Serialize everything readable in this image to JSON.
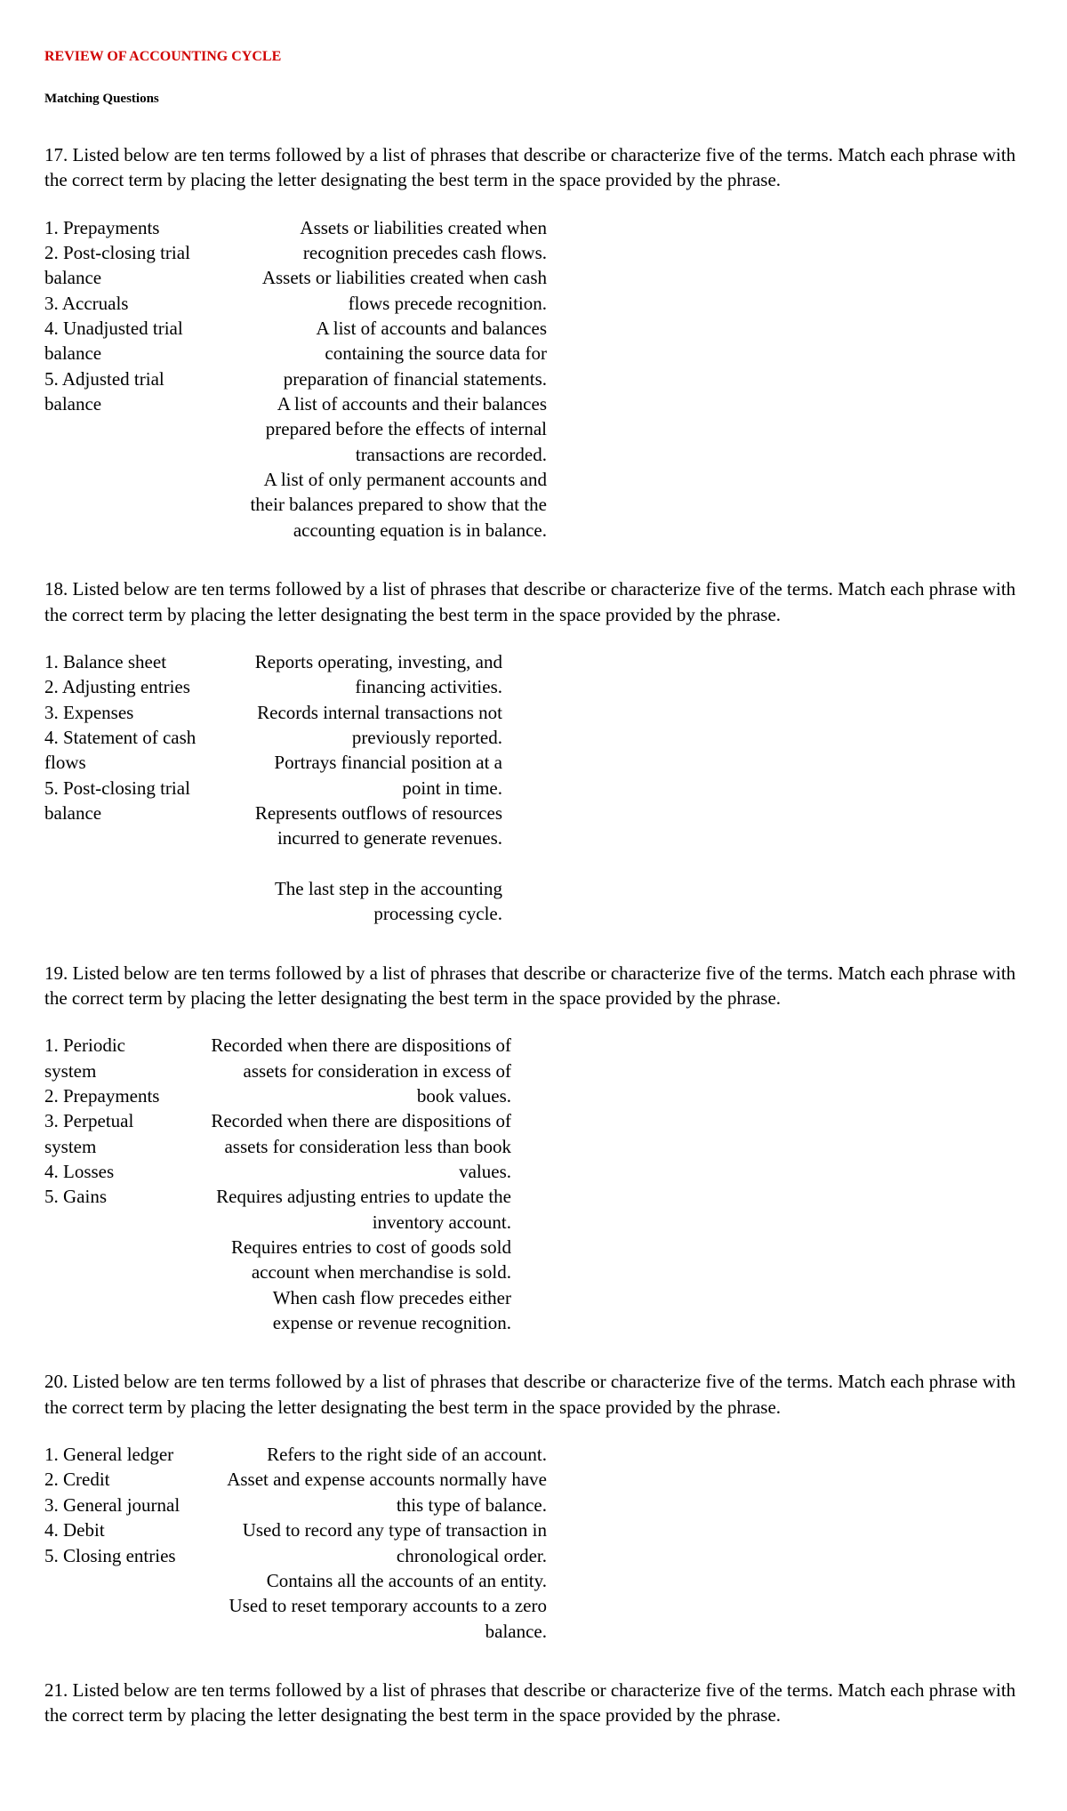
{
  "header": {
    "title": "REVIEW OF ACCOUNTING CYCLE",
    "subtitle": "Matching Questions"
  },
  "instruction": "Listed below are ten terms followed by a list of phrases that describe or characterize five of the terms. Match each phrase with the correct term by placing the letter designating the best term in the space provided by the phrase.",
  "questions": {
    "q17": {
      "number": "17.",
      "terms": {
        "t1": "1. Prepayments",
        "t2": "2. Post-closing trial balance",
        "t3": "3. Accruals",
        "t4": "4. Unadjusted trial balance",
        "t5": "5. Adjusted trial balance"
      },
      "phrases": {
        "p1": "Assets or liabilities created when recognition precedes cash flows.",
        "p2": "Assets or liabilities created when cash flows precede recognition.",
        "p3": "A list of accounts and balances containing the source data for preparation of financial statements.",
        "p4": "A list of accounts and their balances prepared before the effects of internal transactions are recorded.",
        "p5": "A list of only permanent accounts and their balances prepared to show that the accounting equation is in balance."
      }
    },
    "q18": {
      "number": "18.",
      "terms": {
        "t1": "1. Balance sheet",
        "t2": "2. Adjusting entries",
        "t3": "3. Expenses",
        "t4": "4. Statement of cash flows",
        "t5": "5. Post-closing trial balance"
      },
      "phrases": {
        "p1": "Reports operating, investing, and financing activities.",
        "p2": "Records internal transactions not previously reported.",
        "p3": "Portrays financial position at a point in time.",
        "p4": "Represents outflows of resources incurred to generate revenues.",
        "p5": "The last step in the accounting processing cycle."
      }
    },
    "q19": {
      "number": "19.",
      "terms": {
        "t1": "1. Periodic system",
        "t2": "2. Prepayments",
        "t3": "3. Perpetual system",
        "t4": "4. Losses",
        "t5": "5. Gains"
      },
      "phrases": {
        "p1": "Recorded when there are dispositions of assets for consideration in excess of book values.",
        "p2": "Recorded when there are dispositions of assets for consideration less than book values.",
        "p3": "Requires adjusting entries to update the inventory account.",
        "p4": "Requires entries to cost of goods sold account when merchandise is sold.",
        "p5": "When cash flow precedes either expense or revenue recognition."
      }
    },
    "q20": {
      "number": "20.",
      "terms": {
        "t1": "1. General ledger",
        "t2": "2. Credit",
        "t3": "3. General journal",
        "t4": "4. Debit",
        "t5": "5. Closing entries"
      },
      "phrases": {
        "p1": "Refers to the right side of an account.",
        "p2": "Asset and expense accounts normally have this type of balance.",
        "p3": "Used to record any type of transaction in chronological order.",
        "p4": "Contains all the accounts of an entity.",
        "p5": "Used to reset temporary accounts to a zero balance."
      }
    },
    "q21": {
      "number": "21."
    }
  }
}
